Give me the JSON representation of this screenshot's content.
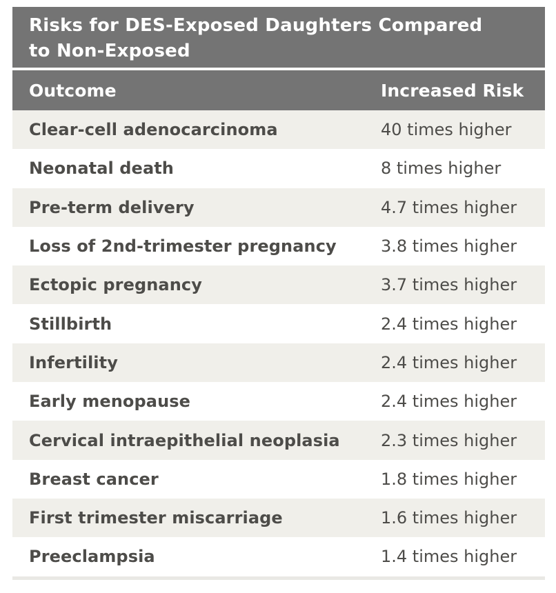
{
  "table": {
    "title_line1": "Risks for DES-Exposed Daughters Compared",
    "title_line2": "to Non-Exposed",
    "columns": {
      "outcome": "Outcome",
      "risk": "Increased Risk"
    },
    "rows": [
      {
        "outcome": "Clear-cell adenocarcinoma",
        "risk": "40 times higher"
      },
      {
        "outcome": "Neonatal death",
        "risk": "8 times higher"
      },
      {
        "outcome": "Pre-term delivery",
        "risk": "4.7 times higher"
      },
      {
        "outcome": "Loss of 2nd-trimester pregnancy",
        "risk": "3.8 times higher"
      },
      {
        "outcome": "Ectopic pregnancy",
        "risk": "3.7 times higher"
      },
      {
        "outcome": "Stillbirth",
        "risk": "2.4 times higher"
      },
      {
        "outcome": "Infertility",
        "risk": "2.4 times higher"
      },
      {
        "outcome": "Early menopause",
        "risk": "2.4 times higher"
      },
      {
        "outcome": "Cervical intraepithelial neoplasia",
        "risk": "2.3 times higher"
      },
      {
        "outcome": "Breast cancer",
        "risk": "1.8 times higher"
      },
      {
        "outcome": "First trimester miscarriage",
        "risk": "1.6 times higher"
      },
      {
        "outcome": "Preeclampsia",
        "risk": "1.4 times higher"
      }
    ]
  },
  "colors": {
    "header_bg": "#747474",
    "header_text": "#ffffff",
    "row_shaded_bg": "#f0efea",
    "row_white_bg": "#ffffff",
    "body_text": "#4d4c49",
    "separator": "#fafaf8",
    "bottom_strip": "#e9e8e4",
    "page_bg": "#ffffff"
  },
  "chart_data": {
    "type": "table",
    "title": "Risks for DES-Exposed Daughters Compared to Non-Exposed",
    "columns": [
      "Outcome",
      "Increased Risk"
    ],
    "rows": [
      [
        "Clear-cell adenocarcinoma",
        "40 times higher"
      ],
      [
        "Neonatal death",
        "8 times higher"
      ],
      [
        "Pre-term delivery",
        "4.7 times higher"
      ],
      [
        "Loss of 2nd-trimester pregnancy",
        "3.8 times higher"
      ],
      [
        "Ectopic pregnancy",
        "3.7 times higher"
      ],
      [
        "Stillbirth",
        "2.4 times higher"
      ],
      [
        "Infertility",
        "2.4 times higher"
      ],
      [
        "Early menopause",
        "2.4 times higher"
      ],
      [
        "Cervical intraepithelial neoplasia",
        "2.3 times higher"
      ],
      [
        "Breast cancer",
        "1.8 times higher"
      ],
      [
        "First trimester miscarriage",
        "1.6 times higher"
      ],
      [
        "Preeclampsia",
        "1.4 times higher"
      ]
    ],
    "risk_multipliers": {
      "Clear-cell adenocarcinoma": 40,
      "Neonatal death": 8,
      "Pre-term delivery": 4.7,
      "Loss of 2nd-trimester pregnancy": 3.8,
      "Ectopic pregnancy": 3.7,
      "Stillbirth": 2.4,
      "Infertility": 2.4,
      "Early menopause": 2.4,
      "Cervical intraepithelial neoplasia": 2.3,
      "Breast cancer": 1.8,
      "First trimester miscarriage": 1.6,
      "Preeclampsia": 1.4
    }
  }
}
